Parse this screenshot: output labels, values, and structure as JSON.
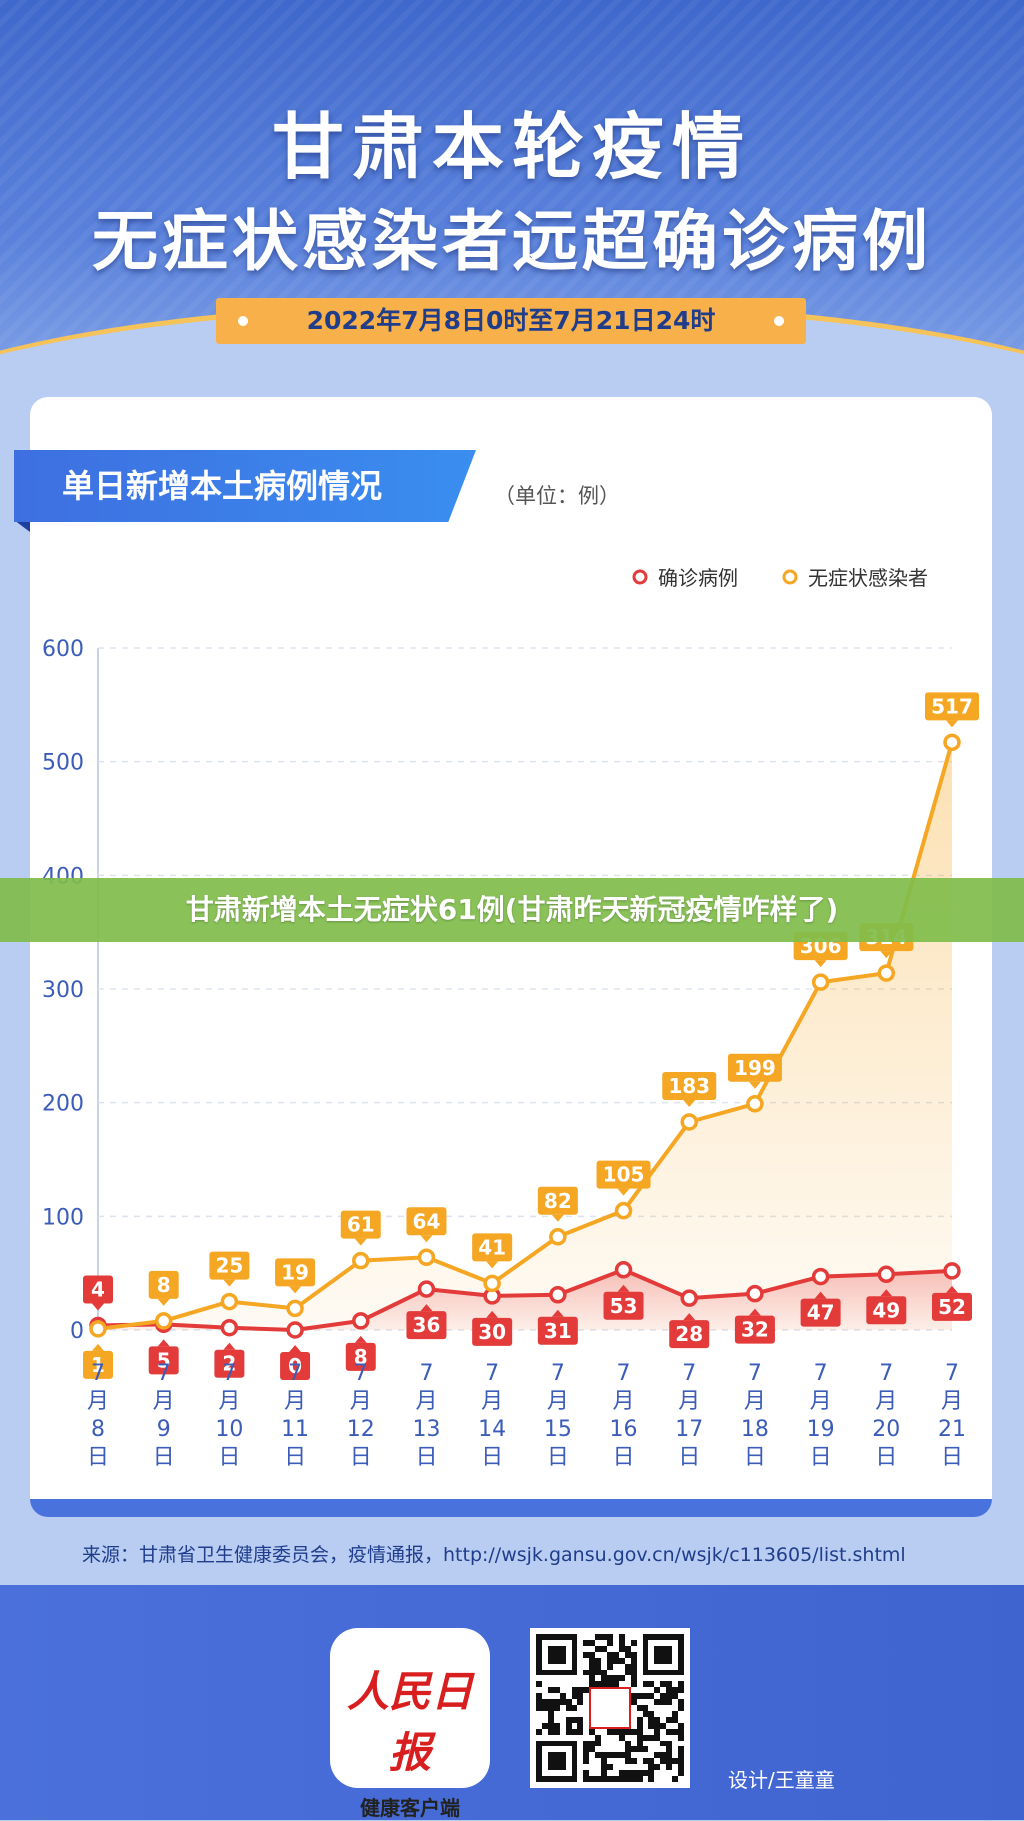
{
  "header": {
    "title_line1": "甘肃本轮疫情",
    "title_line2": "无症状感染者远超确诊病例",
    "date_range": "2022年7月8日0时至7月21日24时"
  },
  "section": {
    "title": "单日新增本土病例情况",
    "unit": "（单位：例）"
  },
  "overlay_banner": "甘肃新增本土无症状61例(甘肃昨天新冠疫情咋样了)",
  "chart_data": {
    "type": "line",
    "categories": [
      "7月8日",
      "7月9日",
      "7月10日",
      "7月11日",
      "7月12日",
      "7月13日",
      "7月14日",
      "7月15日",
      "7月16日",
      "7月17日",
      "7月18日",
      "7月19日",
      "7月20日",
      "7月21日"
    ],
    "category_labels": [
      [
        "7",
        "月",
        "8",
        "日"
      ],
      [
        "7",
        "月",
        "9",
        "日"
      ],
      [
        "7",
        "月",
        "10",
        "日"
      ],
      [
        "7",
        "月",
        "11",
        "日"
      ],
      [
        "7",
        "月",
        "12",
        "日"
      ],
      [
        "7",
        "月",
        "13",
        "日"
      ],
      [
        "7",
        "月",
        "14",
        "日"
      ],
      [
        "7",
        "月",
        "15",
        "日"
      ],
      [
        "7",
        "月",
        "16",
        "日"
      ],
      [
        "7",
        "月",
        "17",
        "日"
      ],
      [
        "7",
        "月",
        "18",
        "日"
      ],
      [
        "7",
        "月",
        "19",
        "日"
      ],
      [
        "7",
        "月",
        "20",
        "日"
      ],
      [
        "7",
        "月",
        "21",
        "日"
      ]
    ],
    "series": [
      {
        "name": "确诊病例",
        "color": "#e33a3a",
        "values": [
          4,
          5,
          2,
          0,
          8,
          36,
          30,
          31,
          53,
          28,
          32,
          47,
          49,
          52
        ]
      },
      {
        "name": "无症状感染者",
        "color": "#f5a623",
        "values": [
          1,
          8,
          25,
          19,
          61,
          64,
          41,
          82,
          105,
          183,
          199,
          306,
          314,
          517
        ]
      }
    ],
    "yticks": [
      0,
      100,
      200,
      300,
      400,
      500,
      600
    ],
    "ylim": [
      0,
      600
    ],
    "grid": true,
    "legend": "top-right"
  },
  "footer": {
    "source": "来源：甘肃省卫生健康委员会，疫情通报，http://wsjk.gansu.gov.cn/wsjk/c113605/list.shtml",
    "logo_mark": "人民日报",
    "logo_sub": "健康客户端",
    "designer": "设计/王童童"
  },
  "colors": {
    "primary_blue": "#3f68cc",
    "confirmed_red": "#e33a3a",
    "asymptomatic_orange": "#f5a623",
    "banner_green": "#80bd4b"
  }
}
